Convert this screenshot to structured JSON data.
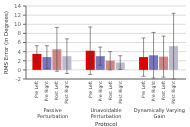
{
  "chart_data": {
    "type": "bar",
    "xlabel": "Protocol",
    "ylabel": "RMS Error (in Degrees)",
    "categories": [
      "Passive Perturbation",
      "Unavoidable Perturbation",
      "Dynamically Varying Gain"
    ],
    "series": [
      {
        "name": "Pre Left",
        "color": "#dd0000",
        "values": [
          3.5,
          4.2,
          2.8
        ],
        "errors": [
          1.8,
          5.2,
          4.2
        ]
      },
      {
        "name": "Pre Right",
        "color": "#7777bb",
        "values": [
          2.8,
          3.0,
          3.2
        ],
        "errors": [
          2.5,
          2.0,
          5.0
        ]
      },
      {
        "name": "Post Left",
        "color": "#cc8888",
        "values": [
          4.5,
          2.0,
          2.9
        ],
        "errors": [
          4.8,
          2.0,
          4.5
        ]
      },
      {
        "name": "Post Right",
        "color": "#bbbbcc",
        "values": [
          3.0,
          1.6,
          5.2
        ],
        "errors": [
          3.8,
          1.5,
          7.2
        ]
      }
    ],
    "ylim": [
      -2,
      14
    ],
    "yticks": [
      -2,
      0,
      2,
      4,
      6,
      8,
      10,
      12,
      14
    ],
    "grid": true
  }
}
